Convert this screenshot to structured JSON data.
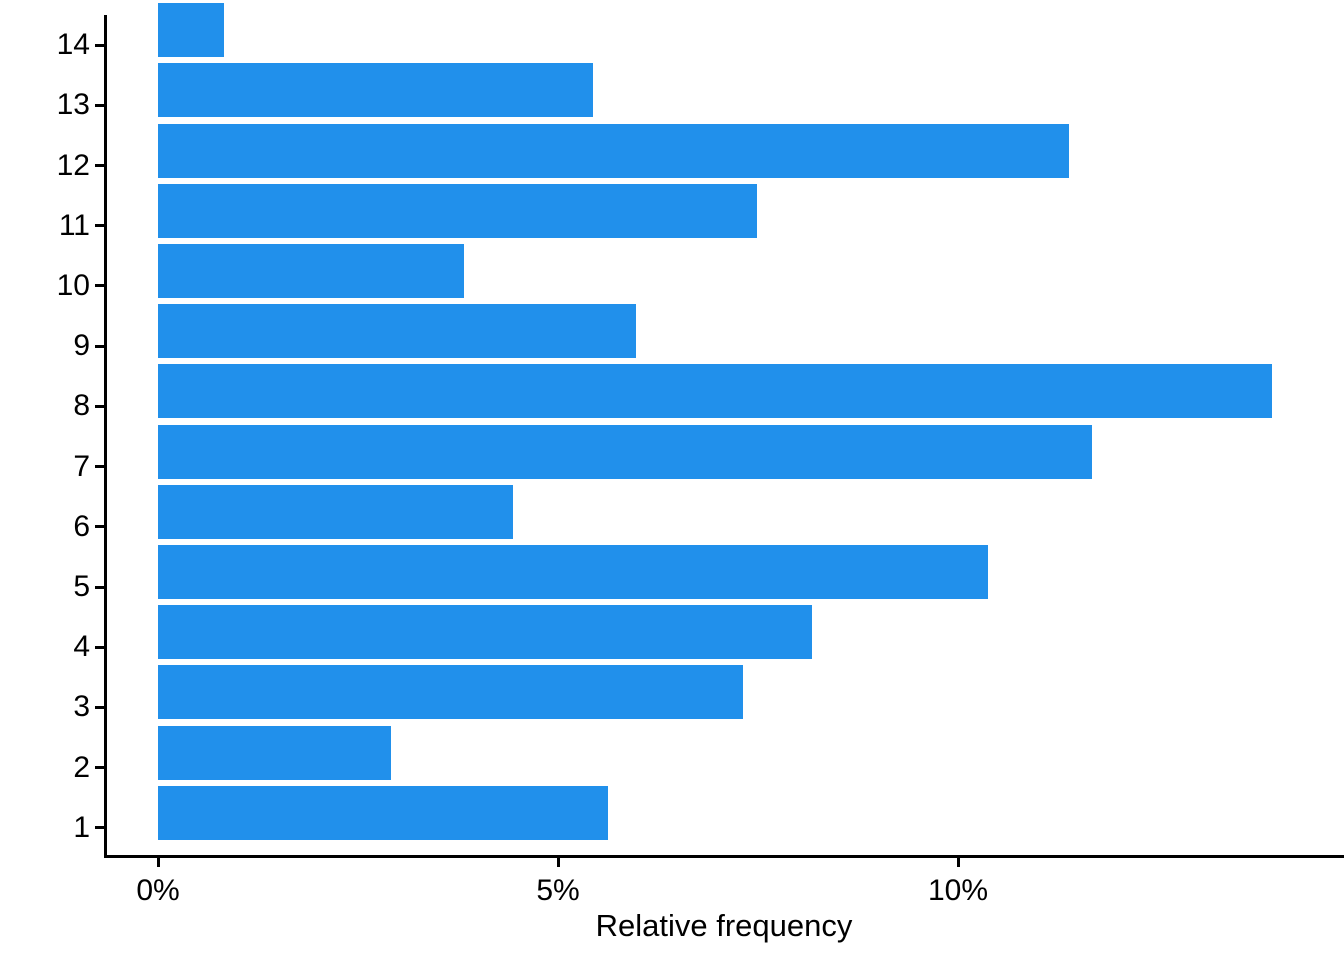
{
  "chart_data": {
    "type": "bar",
    "orientation": "horizontal",
    "title": "",
    "xlabel": "Relative frequency",
    "ylabel": "",
    "categories": [
      "14",
      "13",
      "12",
      "11",
      "10",
      "9",
      "8",
      "7",
      "6",
      "5",
      "4",
      "3",
      "2",
      "1"
    ],
    "values_pct": [
      0.83,
      5.44,
      11.39,
      7.49,
      3.82,
      5.98,
      13.92,
      11.68,
      4.44,
      10.37,
      8.18,
      7.31,
      2.91,
      5.63
    ],
    "x_ticks": [
      {
        "label": "0%",
        "value": 0
      },
      {
        "label": "5%",
        "value": 5
      },
      {
        "label": "10%",
        "value": 10
      }
    ],
    "xlim": [
      0,
      14.82
    ],
    "grid": false,
    "legend": false,
    "bar_color": "#2190EB",
    "axis_color": "#000000",
    "background_color": "#ffffff"
  }
}
